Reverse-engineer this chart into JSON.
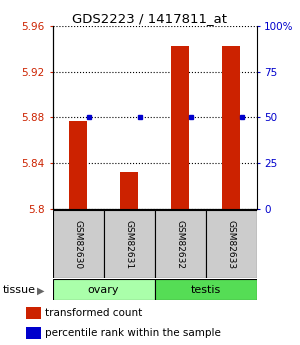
{
  "title": "GDS2223 / 1417811_at",
  "samples": [
    "GSM82630",
    "GSM82631",
    "GSM82632",
    "GSM82633"
  ],
  "tissue_groups": [
    {
      "label": "ovary",
      "color": "#aaffaa"
    },
    {
      "label": "testis",
      "color": "#55dd55"
    }
  ],
  "transformed_count": [
    5.877,
    5.832,
    5.942,
    5.942
  ],
  "percentile_rank": [
    50,
    50,
    50,
    50
  ],
  "ylim": [
    5.8,
    5.96
  ],
  "yticks_left": [
    5.8,
    5.84,
    5.88,
    5.92,
    5.96
  ],
  "yticks_right": [
    0,
    25,
    50,
    75,
    100
  ],
  "bar_color": "#cc2200",
  "dot_color": "#0000cc",
  "bar_width": 0.35,
  "left_axis_color": "#cc2200",
  "right_axis_color": "#0000cc",
  "sample_box_color": "#cccccc",
  "tissue_label": "tissue"
}
